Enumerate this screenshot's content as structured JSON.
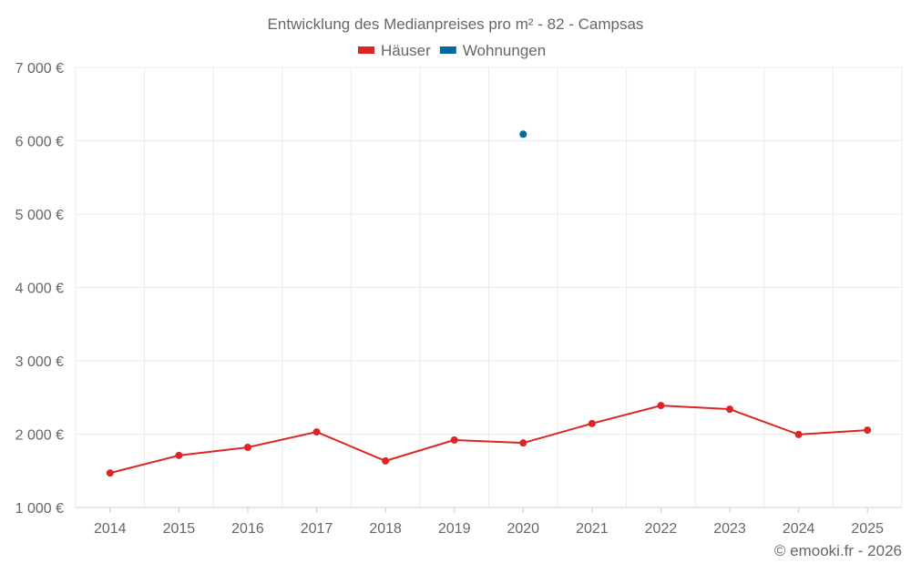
{
  "chart_data": {
    "type": "line",
    "title": "Entwicklung des Medianpreises pro m² - 82 - Campsas",
    "categories": [
      "2014",
      "2015",
      "2016",
      "2017",
      "2018",
      "2019",
      "2020",
      "2021",
      "2022",
      "2023",
      "2024",
      "2025"
    ],
    "series": [
      {
        "name": "Häuser",
        "color": "#dc2626",
        "values": [
          1470,
          1710,
          1820,
          2030,
          1635,
          1920,
          1880,
          2145,
          2390,
          2340,
          1995,
          2055
        ]
      },
      {
        "name": "Wohnungen",
        "color": "#0369a1",
        "values": [
          null,
          null,
          null,
          null,
          null,
          null,
          6090,
          null,
          null,
          null,
          null,
          null
        ]
      }
    ],
    "ylim": [
      1000,
      7000
    ],
    "yticks": [
      1000,
      2000,
      3000,
      4000,
      5000,
      6000,
      7000
    ],
    "ytick_labels": [
      "1 000 €",
      "2 000 €",
      "3 000 €",
      "4 000 €",
      "5 000 €",
      "6 000 €",
      "7 000 €"
    ],
    "grid": true,
    "legend_position": "top-center",
    "xlabel": "",
    "ylabel": ""
  },
  "footer": {
    "credit": "© emooki.fr - 2026"
  }
}
